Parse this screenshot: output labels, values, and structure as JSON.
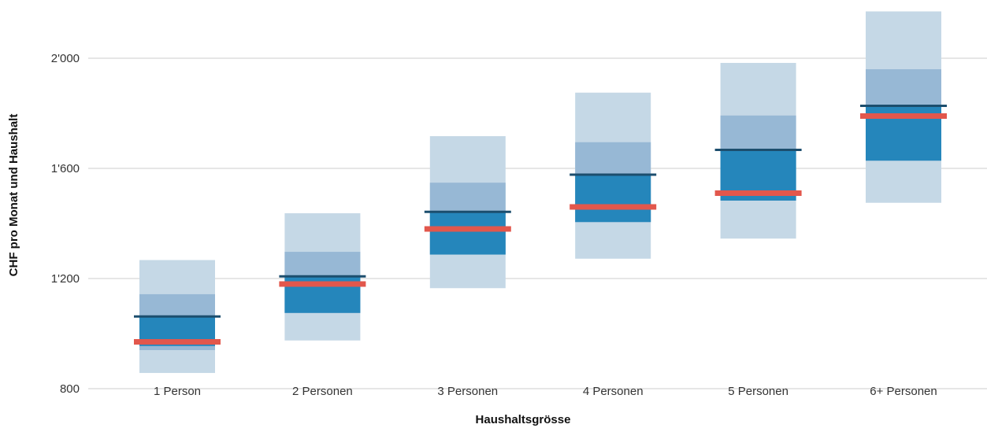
{
  "chart_data": {
    "type": "box",
    "title": "",
    "xlabel": "Haushaltsgrösse",
    "ylabel": "CHF pro Monat und Haushalt",
    "ylim": [
      800,
      2200
    ],
    "yticks": [
      800,
      1200,
      1600,
      2000
    ],
    "ytick_labels": [
      "800",
      "1'200",
      "1'600",
      "2'000"
    ],
    "grid": true,
    "categories": [
      "1 Person",
      "2 Personen",
      "3 Personen",
      "4 Personen",
      "5 Personen",
      "6+ Personen"
    ],
    "bands": [
      {
        "outer_low": 857,
        "outer_high": 1267,
        "mid_low": 940,
        "mid_high": 1143,
        "inner_low": 955,
        "inner_high": 1062
      },
      {
        "outer_low": 975,
        "outer_high": 1437,
        "mid_low": 1075,
        "mid_high": 1297,
        "inner_low": 1075,
        "inner_high": 1208
      },
      {
        "outer_low": 1165,
        "outer_high": 1717,
        "mid_low": 1287,
        "mid_high": 1548,
        "inner_low": 1287,
        "inner_high": 1442
      },
      {
        "outer_low": 1272,
        "outer_high": 1875,
        "mid_low": 1405,
        "mid_high": 1695,
        "inner_low": 1405,
        "inner_high": 1577
      },
      {
        "outer_low": 1345,
        "outer_high": 1983,
        "mid_low": 1483,
        "mid_high": 1792,
        "inner_low": 1483,
        "inner_high": 1667
      },
      {
        "outer_low": 1475,
        "outer_high": 2170,
        "mid_low": 1628,
        "mid_high": 1960,
        "inner_low": 1628,
        "inner_high": 1827
      }
    ],
    "dark_line_values": [
      1062,
      1208,
      1442,
      1577,
      1667,
      1827
    ],
    "red_line_values": [
      970,
      1180,
      1380,
      1460,
      1510,
      1790
    ],
    "colors": {
      "outer": "#c5d8e6",
      "mid": "#97b8d5",
      "inner": "#2586bb",
      "dark_line": "#1c4e6e",
      "red_line": "#e2574c",
      "grid": "#e6e6e6"
    }
  }
}
